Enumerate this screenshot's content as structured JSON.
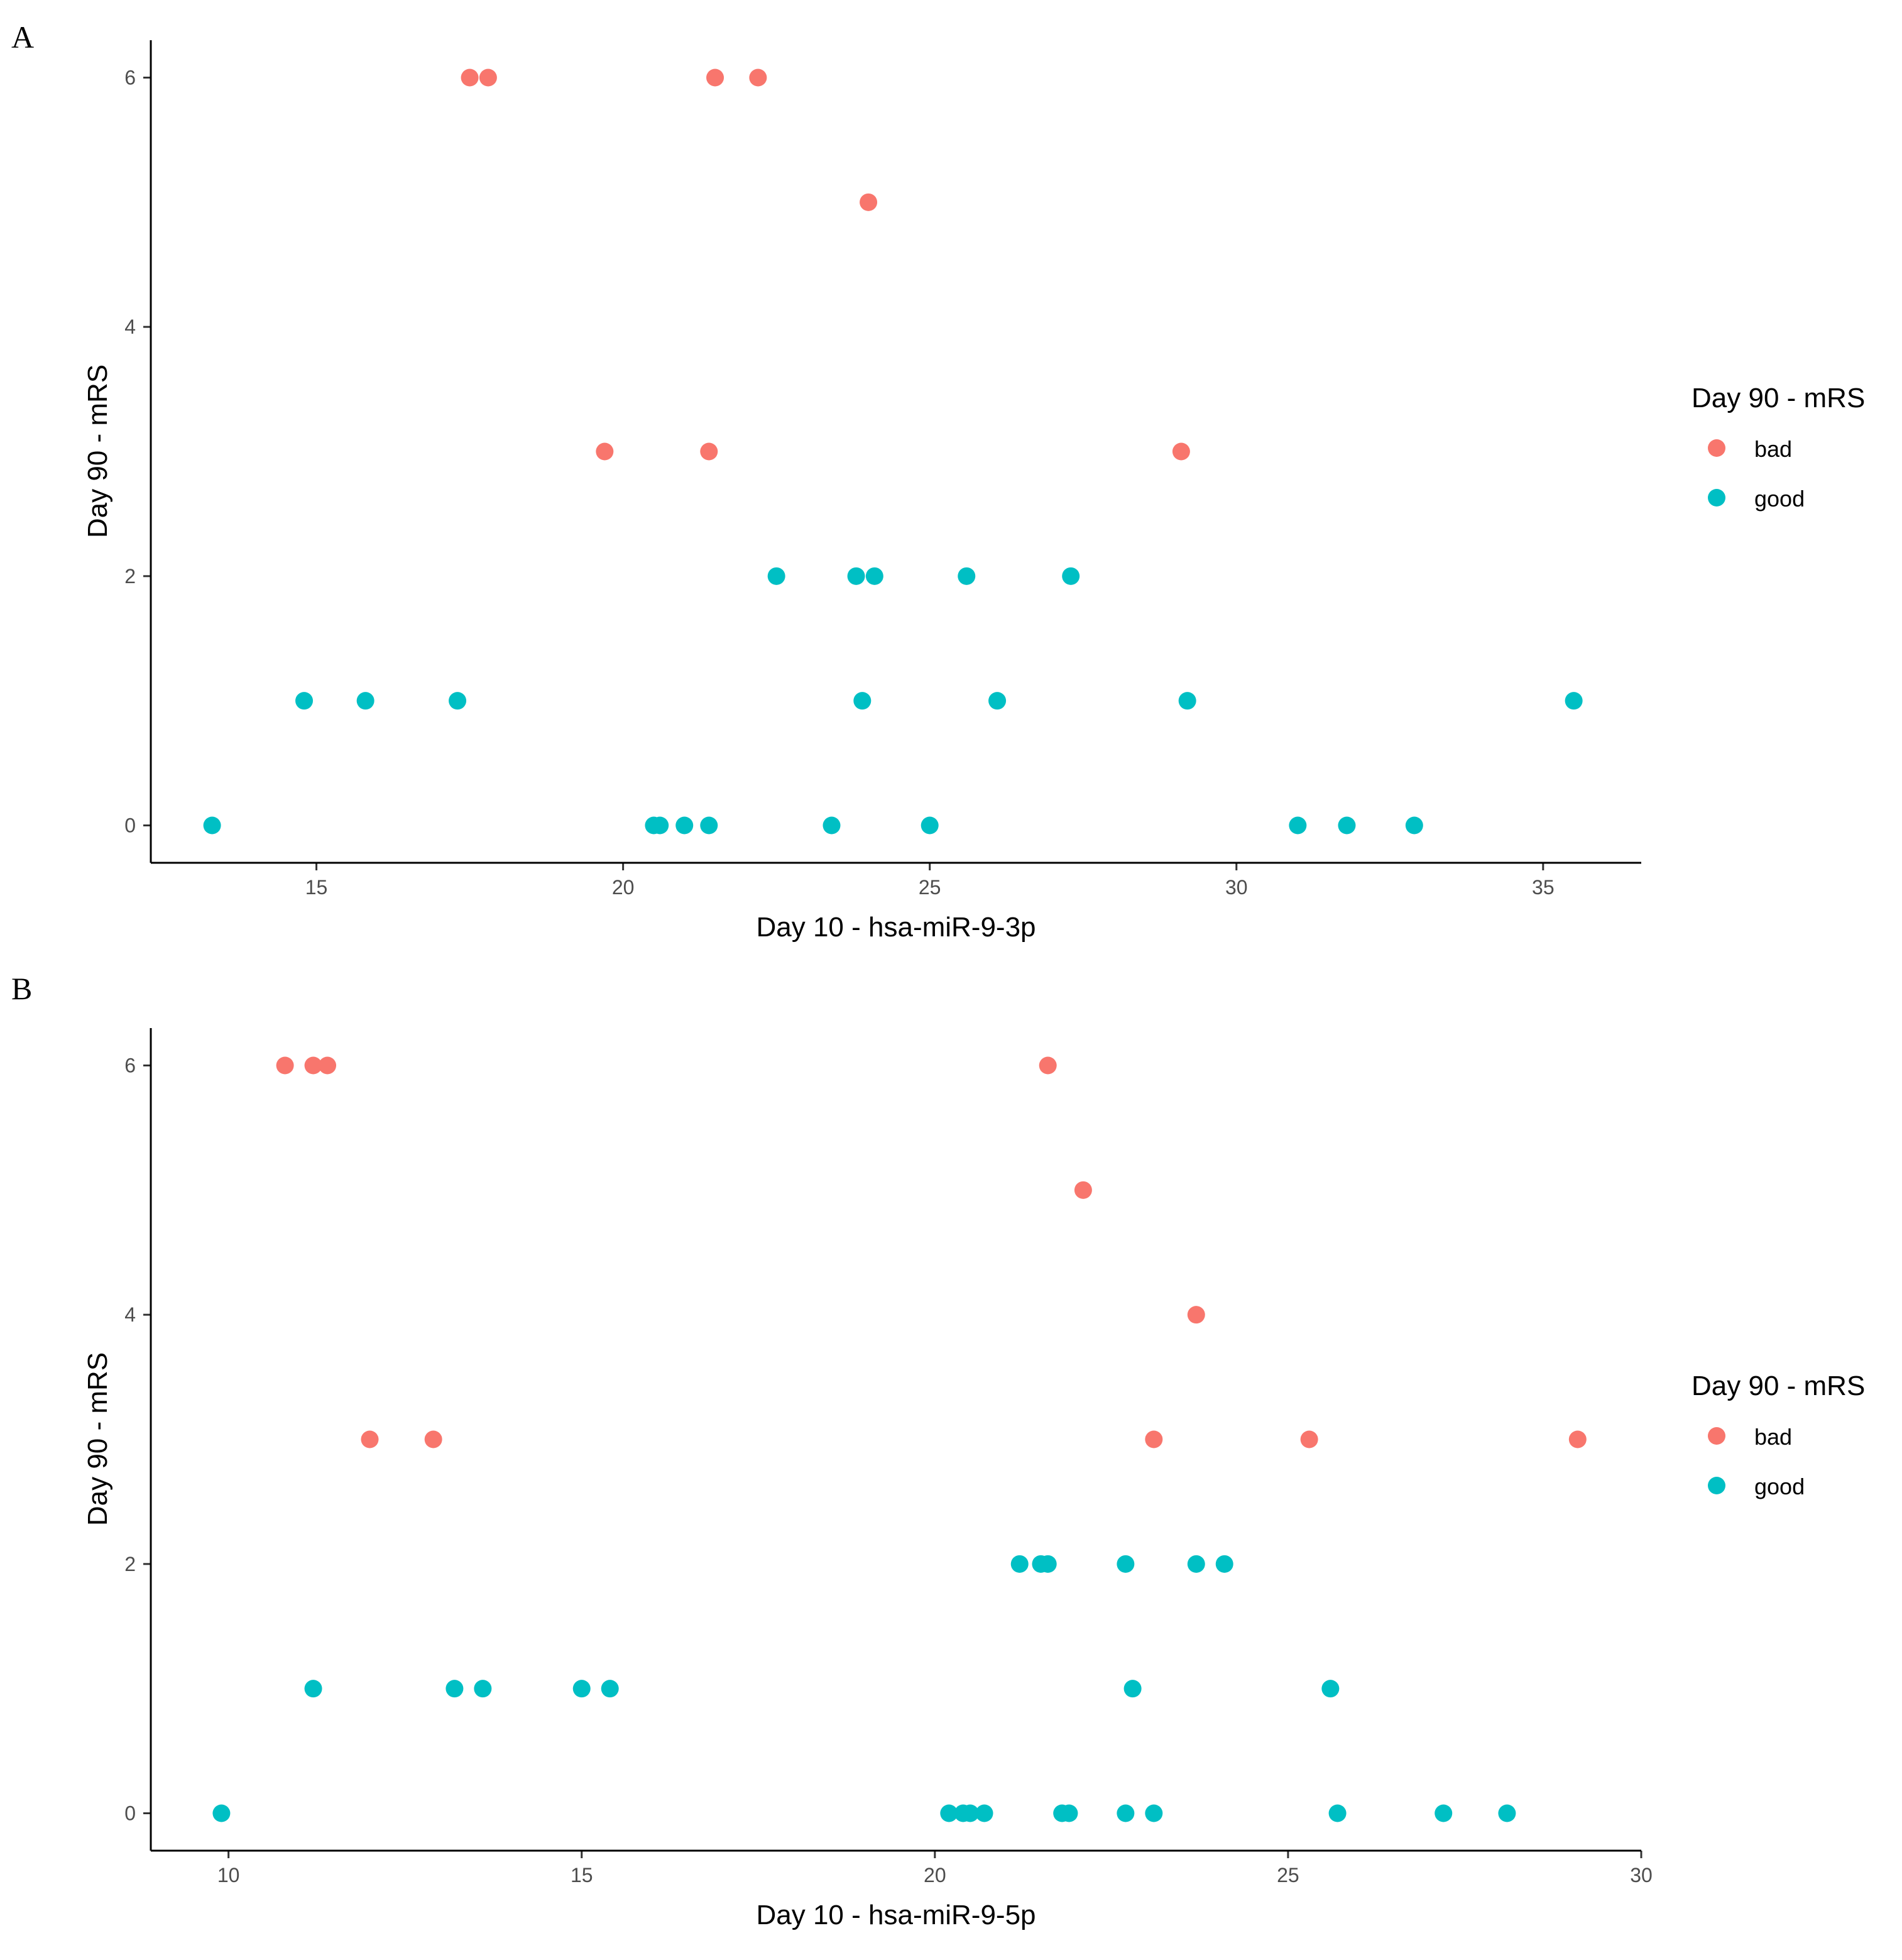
{
  "chart_data": [
    {
      "panel_label": "A",
      "type": "scatter",
      "xlabel": "Day 10 - hsa-miR-9-3p",
      "ylabel": "Day 90 - mRS",
      "xlim": [
        12.3,
        36.6
      ],
      "ylim": [
        -0.3,
        6.3
      ],
      "xticks": [
        15,
        20,
        25,
        30,
        35
      ],
      "yticks": [
        0,
        2,
        4,
        6
      ],
      "grid": false,
      "legend": {
        "title": "Day 90 - mRS",
        "position": "right",
        "entries": [
          {
            "label": "bad",
            "color": "#F8766D"
          },
          {
            "label": "good",
            "color": "#00BFC4"
          }
        ]
      },
      "series": [
        {
          "name": "bad",
          "color": "#F8766D",
          "points": [
            [
              17.5,
              6
            ],
            [
              17.8,
              6
            ],
            [
              21.5,
              6
            ],
            [
              22.2,
              6
            ],
            [
              24.0,
              5
            ],
            [
              19.7,
              3
            ],
            [
              21.4,
              3
            ],
            [
              29.1,
              3
            ]
          ]
        },
        {
          "name": "good",
          "color": "#00BFC4",
          "points": [
            [
              22.5,
              2
            ],
            [
              23.8,
              2
            ],
            [
              24.1,
              2
            ],
            [
              25.6,
              2
            ],
            [
              27.3,
              2
            ],
            [
              14.8,
              1
            ],
            [
              15.8,
              1
            ],
            [
              17.3,
              1
            ],
            [
              23.9,
              1
            ],
            [
              26.1,
              1
            ],
            [
              29.2,
              1
            ],
            [
              35.5,
              1
            ],
            [
              13.3,
              0
            ],
            [
              20.5,
              0
            ],
            [
              20.6,
              0
            ],
            [
              21.0,
              0
            ],
            [
              21.4,
              0
            ],
            [
              23.4,
              0
            ],
            [
              25.0,
              0
            ],
            [
              31.0,
              0
            ],
            [
              31.8,
              0
            ],
            [
              32.9,
              0
            ]
          ]
        }
      ]
    },
    {
      "panel_label": "B",
      "type": "scatter",
      "xlabel": "Day 10 - hsa-miR-9-5p",
      "ylabel": "Day 90 - mRS",
      "xlim": [
        8.9,
        30.0
      ],
      "ylim": [
        -0.3,
        6.3
      ],
      "xticks": [
        10,
        15,
        20,
        25,
        30
      ],
      "yticks": [
        0,
        2,
        4,
        6
      ],
      "grid": false,
      "legend": {
        "title": "Day 90 - mRS",
        "position": "right",
        "entries": [
          {
            "label": "bad",
            "color": "#F8766D"
          },
          {
            "label": "good",
            "color": "#00BFC4"
          }
        ]
      },
      "series": [
        {
          "name": "bad",
          "color": "#F8766D",
          "points": [
            [
              10.8,
              6
            ],
            [
              11.2,
              6
            ],
            [
              11.4,
              6
            ],
            [
              21.6,
              6
            ],
            [
              22.1,
              5
            ],
            [
              23.7,
              4
            ],
            [
              12.0,
              3
            ],
            [
              12.9,
              3
            ],
            [
              23.1,
              3
            ],
            [
              25.3,
              3
            ],
            [
              29.1,
              3
            ]
          ]
        },
        {
          "name": "good",
          "color": "#00BFC4",
          "points": [
            [
              21.2,
              2
            ],
            [
              21.5,
              2
            ],
            [
              21.6,
              2
            ],
            [
              22.7,
              2
            ],
            [
              23.7,
              2
            ],
            [
              24.1,
              2
            ],
            [
              11.2,
              1
            ],
            [
              13.2,
              1
            ],
            [
              13.6,
              1
            ],
            [
              15.0,
              1
            ],
            [
              15.4,
              1
            ],
            [
              22.8,
              1
            ],
            [
              25.6,
              1
            ],
            [
              9.9,
              0
            ],
            [
              20.2,
              0
            ],
            [
              20.4,
              0
            ],
            [
              20.5,
              0
            ],
            [
              20.7,
              0
            ],
            [
              21.8,
              0
            ],
            [
              21.9,
              0
            ],
            [
              22.7,
              0
            ],
            [
              23.1,
              0
            ],
            [
              25.7,
              0
            ],
            [
              27.2,
              0
            ],
            [
              28.1,
              0
            ]
          ]
        }
      ]
    }
  ]
}
